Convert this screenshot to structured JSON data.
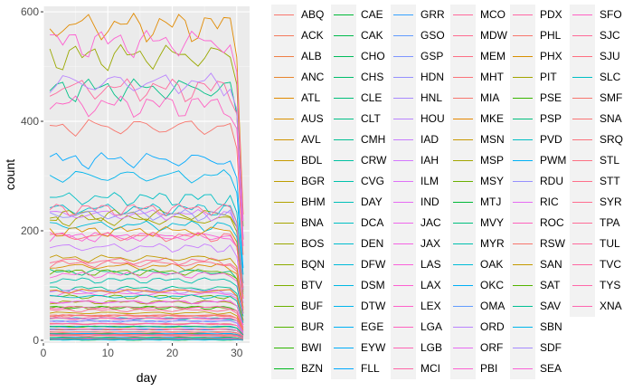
{
  "chart_data": {
    "type": "line",
    "xlabel": "day",
    "ylabel": "count",
    "xlim": [
      0,
      32
    ],
    "ylim": [
      -5,
      610
    ],
    "x_ticks": [
      0,
      10,
      20,
      30
    ],
    "y_ticks": [
      0,
      200,
      400,
      600
    ],
    "grid": true,
    "background": "#ebebeb",
    "legend_position": "right",
    "legend_columns": 6,
    "days_span": [
      1,
      31
    ],
    "series": [
      {
        "name": "ABQ",
        "level": 30,
        "color": "#F8766D"
      },
      {
        "name": "ACK",
        "level": 5,
        "color": "#F47A5C"
      },
      {
        "name": "ALB",
        "level": 20,
        "color": "#EF7F47"
      },
      {
        "name": "ANC",
        "level": 15,
        "color": "#E8852D"
      },
      {
        "name": "ATL",
        "level": 575,
        "color": "#E18A00"
      },
      {
        "name": "AUS",
        "level": 135,
        "color": "#D99000"
      },
      {
        "name": "AVL",
        "level": 10,
        "color": "#D09400"
      },
      {
        "name": "BDL",
        "level": 50,
        "color": "#C79A00"
      },
      {
        "name": "BGR",
        "level": 12,
        "color": "#BD9D00"
      },
      {
        "name": "BHM",
        "level": 10,
        "color": "#B2A200"
      },
      {
        "name": "BNA",
        "level": 220,
        "color": "#A7A500"
      },
      {
        "name": "BOS",
        "level": 520,
        "color": "#9AA800"
      },
      {
        "name": "BQN",
        "level": 3,
        "color": "#8CAB00"
      },
      {
        "name": "BTV",
        "level": 60,
        "color": "#7DAE00"
      },
      {
        "name": "BUF",
        "level": 80,
        "color": "#6BB100"
      },
      {
        "name": "BUR",
        "level": 12,
        "color": "#53B400"
      },
      {
        "name": "BWI",
        "level": 60,
        "color": "#2EB600"
      },
      {
        "name": "BZN",
        "level": 2,
        "color": "#00B81F"
      },
      {
        "name": "CAE",
        "level": 5,
        "color": "#00BA38"
      },
      {
        "name": "CAK",
        "level": 20,
        "color": "#00BB4C"
      },
      {
        "name": "CHO",
        "level": 2,
        "color": "#00BC5C"
      },
      {
        "name": "CHS",
        "level": 40,
        "color": "#00BE6C"
      },
      {
        "name": "CLE",
        "level": 125,
        "color": "#00BF7A"
      },
      {
        "name": "CLT",
        "level": 460,
        "color": "#00C087"
      },
      {
        "name": "CMH",
        "level": 95,
        "color": "#00C094"
      },
      {
        "name": "CRW",
        "level": 3,
        "color": "#00C1A1"
      },
      {
        "name": "CVG",
        "level": 110,
        "color": "#00C1AD"
      },
      {
        "name": "DAY",
        "level": 40,
        "color": "#00C0B9"
      },
      {
        "name": "DCA",
        "level": 260,
        "color": "#00BFC4"
      },
      {
        "name": "DEN",
        "level": 240,
        "color": "#00BDCF"
      },
      {
        "name": "DFW",
        "level": 210,
        "color": "#00BBDA"
      },
      {
        "name": "DSM",
        "level": 15,
        "color": "#00B8E4"
      },
      {
        "name": "DTW",
        "level": 300,
        "color": "#00B5ED"
      },
      {
        "name": "EGE",
        "level": 5,
        "color": "#00B1F5"
      },
      {
        "name": "EYW",
        "level": 2,
        "color": "#00ADFA"
      },
      {
        "name": "FLL",
        "level": 330,
        "color": "#00A9FF"
      },
      {
        "name": "GRR",
        "level": 25,
        "color": "#35A2FF"
      },
      {
        "name": "GSO",
        "level": 35,
        "color": "#619CFF"
      },
      {
        "name": "GSP",
        "level": 25,
        "color": "#7E96FF"
      },
      {
        "name": "HDN",
        "level": 2,
        "color": "#9590FF"
      },
      {
        "name": "HNL",
        "level": 20,
        "color": "#A889FF"
      },
      {
        "name": "HOU",
        "level": 90,
        "color": "#B983FF"
      },
      {
        "name": "IAD",
        "level": 170,
        "color": "#C77CFF"
      },
      {
        "name": "IAH",
        "level": 230,
        "color": "#D376FF"
      },
      {
        "name": "ILM",
        "level": 3,
        "color": "#DE71F9"
      },
      {
        "name": "IND",
        "level": 90,
        "color": "#E76BF3"
      },
      {
        "name": "JAC",
        "level": 2,
        "color": "#EF67EB"
      },
      {
        "name": "JAX",
        "level": 85,
        "color": "#F564E3"
      },
      {
        "name": "LAS",
        "level": 190,
        "color": "#FA62DA"
      },
      {
        "name": "LAX",
        "level": 545,
        "color": "#FD61D1"
      },
      {
        "name": "LEX",
        "level": 2,
        "color": "#FF61C9"
      },
      {
        "name": "LGA",
        "level": 20,
        "color": "#FF62BF"
      },
      {
        "name": "LGB",
        "level": 20,
        "color": "#FF64B4"
      },
      {
        "name": "MCI",
        "level": 70,
        "color": "#FF66A8"
      },
      {
        "name": "MCO",
        "level": 460,
        "color": "#FF699C"
      },
      {
        "name": "MDW",
        "level": 145,
        "color": "#FF6C91"
      },
      {
        "name": "MEM",
        "level": 15,
        "color": "#FD6F85"
      },
      {
        "name": "MHT",
        "level": 30,
        "color": "#FB7379"
      },
      {
        "name": "MIA",
        "level": 390,
        "color": "#F8766D"
      },
      {
        "name": "MKE",
        "level": 90,
        "color": "#E58700"
      },
      {
        "name": "MSN",
        "level": 20,
        "color": "#C99800"
      },
      {
        "name": "MSP",
        "level": 230,
        "color": "#A3A500"
      },
      {
        "name": "MSY",
        "level": 125,
        "color": "#6BB100"
      },
      {
        "name": "MTJ",
        "level": 1,
        "color": "#00BA38"
      },
      {
        "name": "MVY",
        "level": 5,
        "color": "#00BF7D"
      },
      {
        "name": "MYR",
        "level": 3,
        "color": "#00C0AF"
      },
      {
        "name": "OAK",
        "level": 10,
        "color": "#00BCD8"
      },
      {
        "name": "OKC",
        "level": 12,
        "color": "#00B0F6"
      },
      {
        "name": "OMA",
        "level": 25,
        "color": "#619CFF"
      },
      {
        "name": "ORD",
        "level": 470,
        "color": "#B983FF"
      },
      {
        "name": "ORF",
        "level": 40,
        "color": "#E76BF3"
      },
      {
        "name": "PBI",
        "level": 190,
        "color": "#FD61D1"
      },
      {
        "name": "PDX",
        "level": 40,
        "color": "#FF67A4"
      },
      {
        "name": "PHL",
        "level": 45,
        "color": "#F8766D"
      },
      {
        "name": "PHX",
        "level": 200,
        "color": "#D89000"
      },
      {
        "name": "PIT",
        "level": 70,
        "color": "#A3A500"
      },
      {
        "name": "PSE",
        "level": 1,
        "color": "#39B600"
      },
      {
        "name": "PSP",
        "level": 1,
        "color": "#00BF7D"
      },
      {
        "name": "PVD",
        "level": 10,
        "color": "#00BFC4"
      },
      {
        "name": "PWM",
        "level": 20,
        "color": "#00B0F6"
      },
      {
        "name": "RDU",
        "level": 230,
        "color": "#9590FF"
      },
      {
        "name": "RIC",
        "level": 70,
        "color": "#E76BF3"
      },
      {
        "name": "ROC",
        "level": 60,
        "color": "#FF62BC"
      },
      {
        "name": "RSW",
        "level": 45,
        "color": "#F8766D"
      },
      {
        "name": "SAN",
        "level": 150,
        "color": "#C49A00"
      },
      {
        "name": "SAT",
        "level": 25,
        "color": "#53B400"
      },
      {
        "name": "SAV",
        "level": 25,
        "color": "#00C094"
      },
      {
        "name": "SBN",
        "level": 1,
        "color": "#00B6EB"
      },
      {
        "name": "SDF",
        "level": 35,
        "color": "#A58AFF"
      },
      {
        "name": "SEA",
        "level": 120,
        "color": "#FB61D7"
      },
      {
        "name": "SFO",
        "level": 430,
        "color": "#FF61C3"
      },
      {
        "name": "SJC",
        "level": 10,
        "color": "#FF6A98"
      },
      {
        "name": "SJU",
        "level": 190,
        "color": "#FF6F80"
      },
      {
        "name": "SLC",
        "level": 80,
        "color": "#00BFC4"
      },
      {
        "name": "SMF",
        "level": 10,
        "color": "#F8766D"
      },
      {
        "name": "SNA",
        "level": 15,
        "color": "#FA7474"
      },
      {
        "name": "SRQ",
        "level": 45,
        "color": "#FC727C"
      },
      {
        "name": "STL",
        "level": 140,
        "color": "#FD7083"
      },
      {
        "name": "STT",
        "level": 8,
        "color": "#FE6F8A"
      },
      {
        "name": "SYR",
        "level": 55,
        "color": "#FF6E90"
      },
      {
        "name": "TPA",
        "level": 240,
        "color": "#FF6C97"
      },
      {
        "name": "TUL",
        "level": 10,
        "color": "#FF6B9D"
      },
      {
        "name": "TVC",
        "level": 3,
        "color": "#FF69A3"
      },
      {
        "name": "TYS",
        "level": 20,
        "color": "#FF68A9"
      },
      {
        "name": "XNA",
        "level": 30,
        "color": "#FF66AF"
      }
    ]
  }
}
